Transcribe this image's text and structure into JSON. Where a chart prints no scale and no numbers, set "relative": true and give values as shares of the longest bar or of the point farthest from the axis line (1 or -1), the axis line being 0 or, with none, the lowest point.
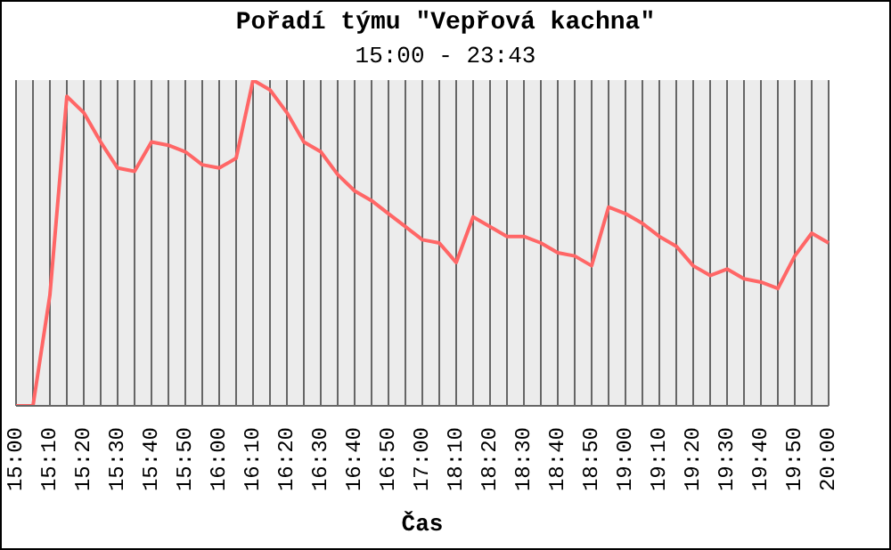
{
  "chart_data": {
    "type": "line",
    "title": "Pořadí týmu \"Vepřová kachna\"",
    "subtitle": "15:00 - 23:43",
    "xlabel": "Čas",
    "relative": true,
    "grid": "x",
    "marker": "none",
    "line_style": "solid",
    "legend": false,
    "categories": [
      "15:00",
      null,
      "15:10",
      null,
      "15:20",
      null,
      "15:30",
      null,
      "15:40",
      null,
      "15:50",
      null,
      "16:00",
      null,
      "16:10",
      null,
      "16:20",
      null,
      "16:30",
      null,
      "16:40",
      null,
      "16:50",
      null,
      "17:00",
      null,
      "18:10",
      null,
      "18:20",
      null,
      "18:30",
      null,
      "18:40",
      null,
      "18:50",
      null,
      "19:00",
      null,
      "19:10",
      null,
      "19:20",
      null,
      "19:30",
      null,
      "19:40",
      null,
      "19:50",
      null,
      "20:00"
    ],
    "series": [
      {
        "color": "#ff6666",
        "values": [
          0,
          0,
          0.34,
          0.95,
          0.9,
          0.81,
          0.73,
          0.72,
          0.81,
          0.8,
          0.78,
          0.74,
          0.73,
          0.76,
          1,
          0.97,
          0.9,
          0.81,
          0.78,
          0.71,
          0.66,
          0.63,
          0.59,
          0.55,
          0.51,
          0.5,
          0.44,
          0.58,
          0.55,
          0.52,
          0.52,
          0.5,
          0.47,
          0.46,
          0.43,
          0.61,
          0.59,
          0.56,
          0.52,
          0.49,
          0.43,
          0.4,
          0.42,
          0.39,
          0.38,
          0.36,
          0.46,
          0.53,
          0.5
        ]
      }
    ]
  }
}
